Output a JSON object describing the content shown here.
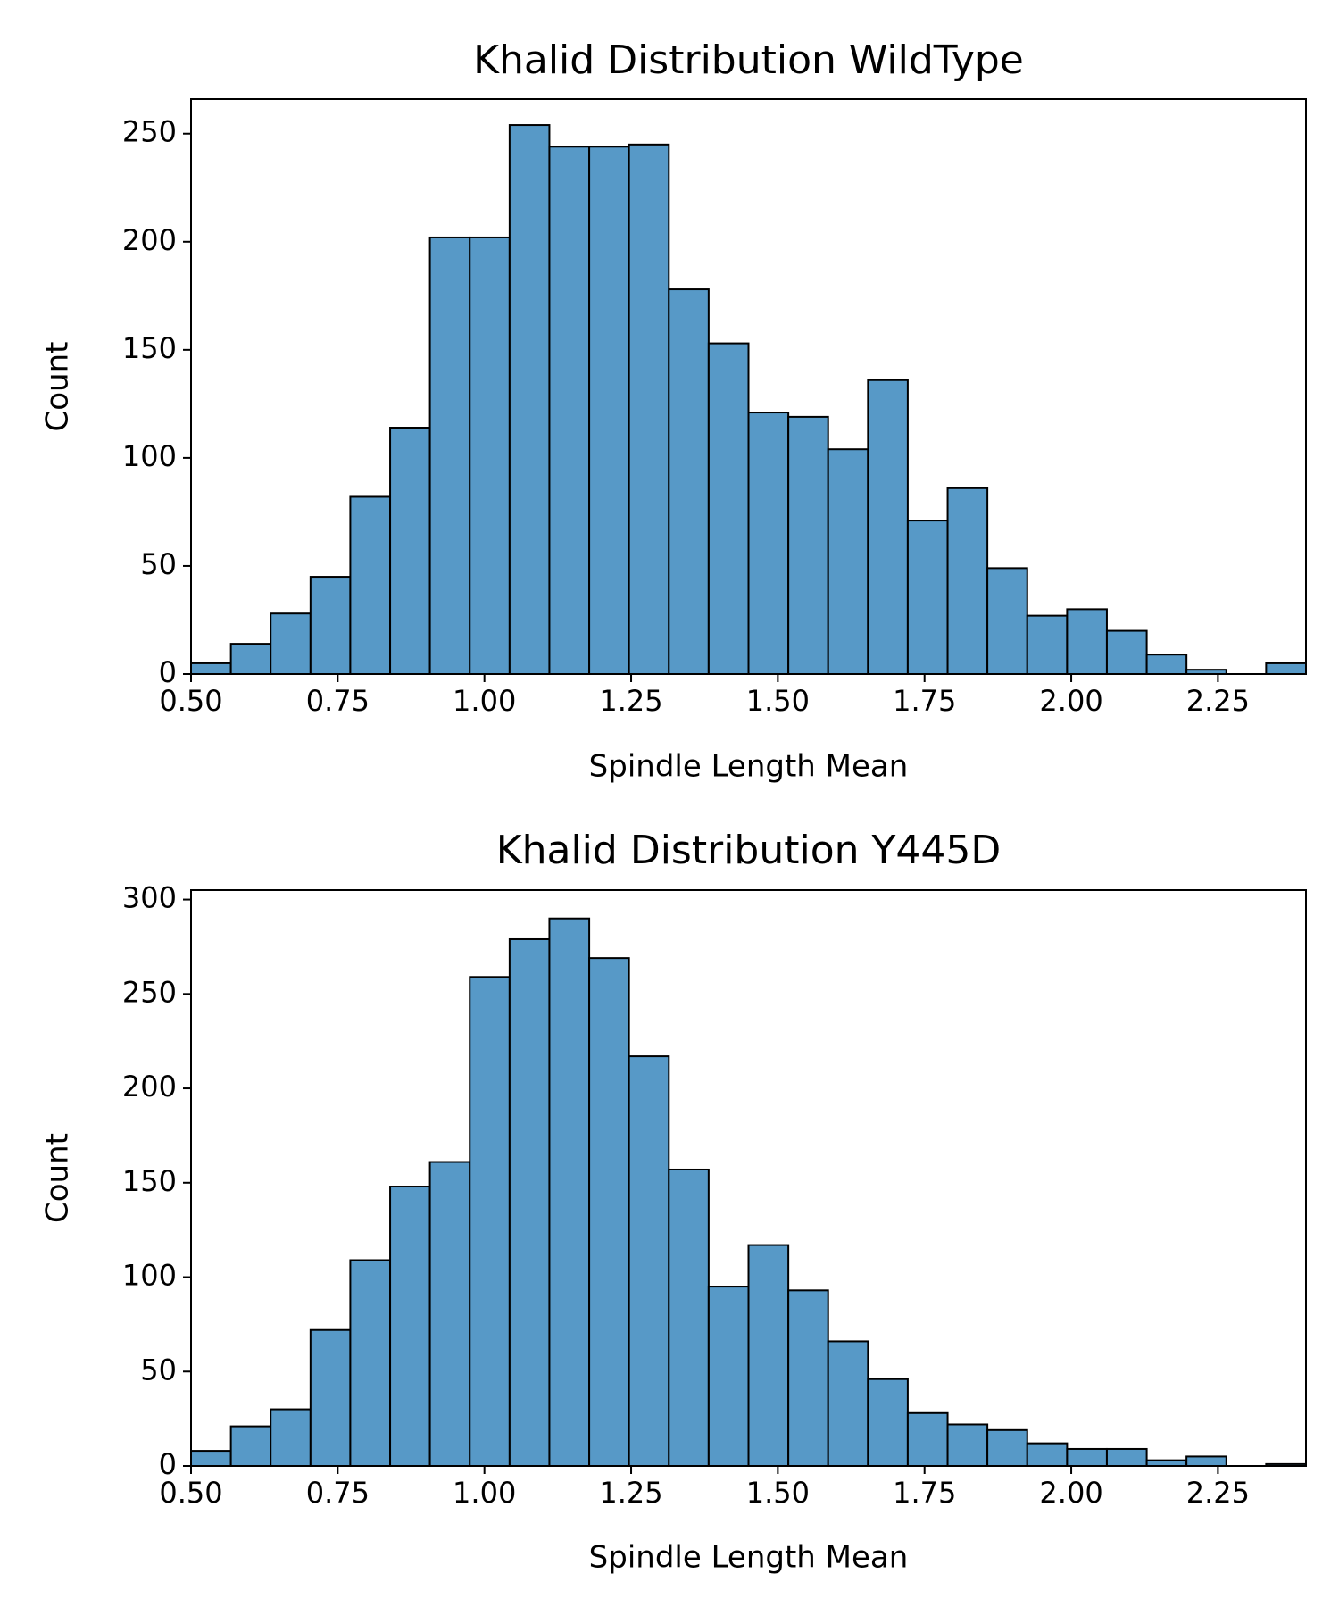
{
  "chart_data": [
    {
      "type": "histogram",
      "title": "Khalid Distribution WildType",
      "x_label": "Spindle Length Mean",
      "y_label": "Count",
      "color": "#5799c7",
      "bins": [
        0.5,
        0.5679,
        0.6357,
        0.7036,
        0.7714,
        0.8393,
        0.9071,
        0.975,
        1.0429,
        1.1107,
        1.1786,
        1.2464,
        1.3143,
        1.3821,
        1.45,
        1.5179,
        1.5857,
        1.6536,
        1.7214,
        1.7893,
        1.8571,
        1.925,
        1.9929,
        2.0607,
        2.1286,
        2.1964,
        2.2643,
        2.3321,
        2.4
      ],
      "counts": [
        5,
        14,
        28,
        45,
        82,
        114,
        202,
        202,
        254,
        244,
        244,
        245,
        178,
        153,
        121,
        119,
        104,
        136,
        71,
        86,
        49,
        27,
        30,
        20,
        9,
        2,
        0,
        5
      ],
      "xlim": [
        0.5,
        2.4
      ],
      "ylim": [
        0,
        266
      ],
      "xticks": [
        {
          "value": 0.5,
          "label": "0.50"
        },
        {
          "value": 0.75,
          "label": "0.75"
        },
        {
          "value": 1.0,
          "label": "1.00"
        },
        {
          "value": 1.25,
          "label": "1.25"
        },
        {
          "value": 1.5,
          "label": "1.50"
        },
        {
          "value": 1.75,
          "label": "1.75"
        },
        {
          "value": 2.0,
          "label": "2.00"
        },
        {
          "value": 2.25,
          "label": "2.25"
        }
      ],
      "yticks": [
        0,
        50,
        100,
        150,
        200,
        250
      ]
    },
    {
      "type": "histogram",
      "title": "Khalid Distribution Y445D",
      "x_label": "Spindle Length Mean",
      "y_label": "Count",
      "color": "#5799c7",
      "bins": [
        0.5,
        0.5679,
        0.6357,
        0.7036,
        0.7714,
        0.8393,
        0.9071,
        0.975,
        1.0429,
        1.1107,
        1.1786,
        1.2464,
        1.3143,
        1.3821,
        1.45,
        1.5179,
        1.5857,
        1.6536,
        1.7214,
        1.7893,
        1.8571,
        1.925,
        1.9929,
        2.0607,
        2.1286,
        2.1964,
        2.2643,
        2.3321,
        2.4
      ],
      "counts": [
        8,
        21,
        30,
        72,
        109,
        148,
        161,
        259,
        279,
        290,
        269,
        217,
        157,
        95,
        117,
        93,
        66,
        46,
        28,
        22,
        19,
        12,
        9,
        9,
        3,
        5,
        0,
        1
      ],
      "xlim": [
        0.5,
        2.4
      ],
      "ylim": [
        0,
        305
      ],
      "xticks": [
        {
          "value": 0.5,
          "label": "0.50"
        },
        {
          "value": 0.75,
          "label": "0.75"
        },
        {
          "value": 1.0,
          "label": "1.00"
        },
        {
          "value": 1.25,
          "label": "1.25"
        },
        {
          "value": 1.5,
          "label": "1.50"
        },
        {
          "value": 1.75,
          "label": "1.75"
        },
        {
          "value": 2.0,
          "label": "2.00"
        },
        {
          "value": 2.25,
          "label": "2.25"
        }
      ],
      "yticks": [
        0,
        50,
        100,
        150,
        200,
        250,
        300
      ]
    }
  ]
}
